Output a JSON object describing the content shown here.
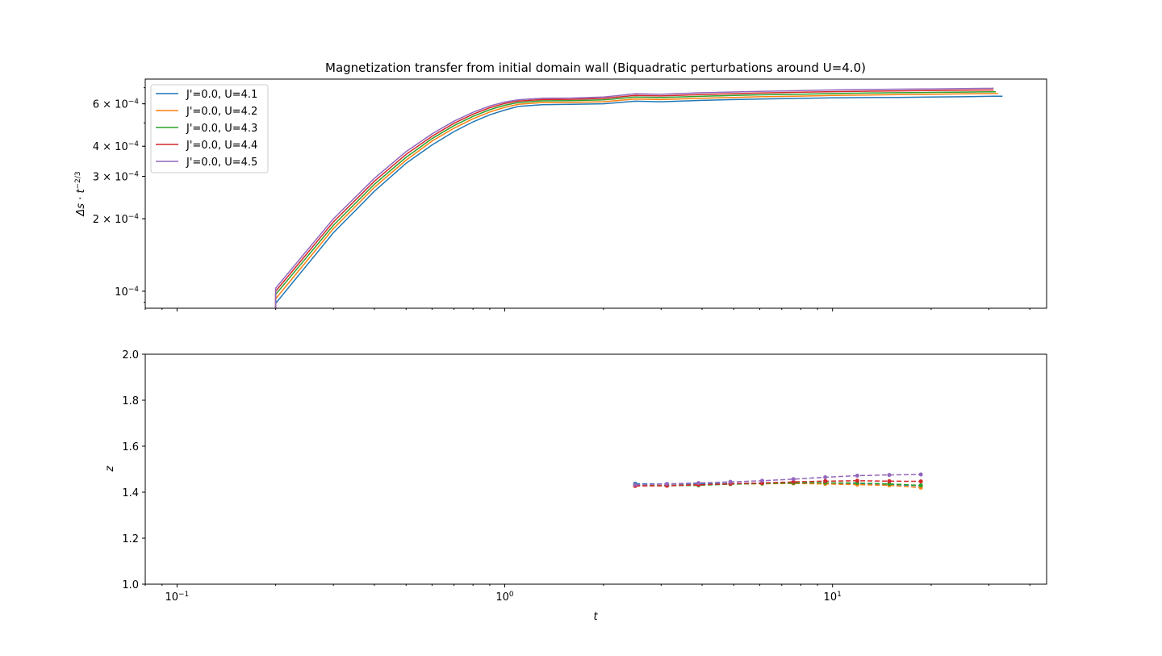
{
  "chart_data": [
    {
      "type": "line",
      "title": "Magnetization transfer from initial domain wall (Biquadratic perturbations around U=4.0)",
      "xlabel": "",
      "ylabel": "Δs · t^{−2/3}",
      "xscale": "log",
      "yscale": "log",
      "xlim": [
        0.08,
        45
      ],
      "ylim": [
        8.5e-05,
        0.00076
      ],
      "ytick_labels": [
        {
          "value": 0.0001,
          "base": "10",
          "exp": "−4",
          "mant": ""
        },
        {
          "value": 0.0002,
          "base": "10",
          "exp": "−4",
          "mant": "2 × "
        },
        {
          "value": 0.0003,
          "base": "10",
          "exp": "−4",
          "mant": "3 × "
        },
        {
          "value": 0.0004,
          "base": "10",
          "exp": "−4",
          "mant": "4 × "
        },
        {
          "value": 0.0006,
          "base": "10",
          "exp": "−4",
          "mant": "6 × "
        }
      ],
      "legend_position": "upper-left",
      "grid": false,
      "x": [
        0.2,
        0.3,
        0.4,
        0.5,
        0.6,
        0.7,
        0.8,
        0.9,
        1.0,
        1.1,
        1.3,
        1.6,
        2.0,
        2.5,
        3.0,
        4.0,
        5.0,
        6.0,
        8.0,
        10.0,
        13.0,
        16.0,
        20.0,
        25.0,
        31.0
      ],
      "series": [
        {
          "name": "J'=0.0, U=4.1",
          "color": "#1f77b4",
          "start_value": 8.5e-05,
          "values": [
            8.9e-05,
            0.000175,
            0.00026,
            0.00034,
            0.000405,
            0.00046,
            0.000505,
            0.00054,
            0.000565,
            0.000585,
            0.000595,
            0.000597,
            0.0006,
            0.000615,
            0.000612,
            0.00062,
            0.000625,
            0.000628,
            0.000632,
            0.000635,
            0.000637,
            0.000638,
            0.00064,
            0.000642,
            0.000645
          ],
          "end_x": 33.0
        },
        {
          "name": "J'=0.0, U=4.2",
          "color": "#ff7f0e",
          "start_value": 8.5e-05,
          "values": [
            9.3e-05,
            0.000182,
            0.00027,
            0.00035,
            0.00042,
            0.000475,
            0.00052,
            0.000555,
            0.00058,
            0.000597,
            0.000607,
            0.000608,
            0.000612,
            0.000628,
            0.000625,
            0.000633,
            0.000638,
            0.000642,
            0.000646,
            0.00065,
            0.000653,
            0.000655,
            0.000657,
            0.00066,
            0.000662
          ],
          "end_x": 32.0
        },
        {
          "name": "J'=0.0, U=4.3",
          "color": "#2ca02c",
          "start_value": 8.5e-05,
          "values": [
            9.7e-05,
            0.000188,
            0.000278,
            0.00036,
            0.00043,
            0.000487,
            0.000532,
            0.000567,
            0.000592,
            0.000607,
            0.000617,
            0.000618,
            0.000623,
            0.00064,
            0.000637,
            0.000645,
            0.00065,
            0.000654,
            0.000658,
            0.000662,
            0.000665,
            0.000667,
            0.000669,
            0.000671,
            0.000673
          ],
          "end_x": 31.5
        },
        {
          "name": "J'=0.0, U=4.4",
          "color": "#d62728",
          "start_value": 8.5e-05,
          "values": [
            0.0001,
            0.000194,
            0.000286,
            0.00037,
            0.00044,
            0.000498,
            0.000543,
            0.000578,
            0.000602,
            0.000616,
            0.000625,
            0.000626,
            0.000632,
            0.00065,
            0.000647,
            0.000656,
            0.000661,
            0.000665,
            0.00067,
            0.000674,
            0.000677,
            0.000679,
            0.000681,
            0.000683,
            0.000685
          ],
          "end_x": 31.0
        },
        {
          "name": "J'=0.0, U=4.5",
          "color": "#9467bd",
          "start_value": 8.5e-05,
          "values": [
            0.000103,
            0.0002,
            0.000294,
            0.00038,
            0.00045,
            0.000508,
            0.000553,
            0.000588,
            0.00061,
            0.000624,
            0.000633,
            0.000634,
            0.00064,
            0.00066,
            0.000657,
            0.000667,
            0.000672,
            0.000676,
            0.000681,
            0.000685,
            0.000688,
            0.00069,
            0.000692,
            0.000694,
            0.000696
          ],
          "end_x": 30.5
        }
      ]
    },
    {
      "type": "line",
      "title": "",
      "xlabel": "t",
      "ylabel": "z",
      "xscale": "log",
      "yscale": "linear",
      "xlim": [
        0.08,
        45
      ],
      "ylim": [
        1.0,
        2.0
      ],
      "yticks": [
        1.0,
        1.2,
        1.4,
        1.6,
        1.8,
        2.0
      ],
      "ytick_labels": [
        "1.0",
        "1.2",
        "1.4",
        "1.6",
        "1.8",
        "2.0"
      ],
      "xtick_labels": [
        {
          "value": 0.1,
          "base": "10",
          "exp": "−1"
        },
        {
          "value": 1,
          "base": "10",
          "exp": "0"
        },
        {
          "value": 10,
          "base": "10",
          "exp": "1"
        }
      ],
      "line_style": "dashed",
      "marker": "circle",
      "grid": false,
      "x": [
        2.5,
        3.125,
        3.9,
        4.88,
        6.1,
        7.6,
        9.5,
        11.9,
        14.9,
        18.6
      ],
      "series": [
        {
          "color": "#1f77b4",
          "values": [
            1.437,
            1.435,
            1.436,
            1.438,
            1.44,
            1.441,
            1.44,
            1.437,
            1.434,
            1.428
          ]
        },
        {
          "color": "#ff7f0e",
          "values": [
            1.43,
            1.429,
            1.432,
            1.435,
            1.437,
            1.438,
            1.436,
            1.433,
            1.43,
            1.42
          ]
        },
        {
          "color": "#2ca02c",
          "values": [
            1.428,
            1.428,
            1.43,
            1.435,
            1.438,
            1.44,
            1.441,
            1.44,
            1.436,
            1.43
          ]
        },
        {
          "color": "#d62728",
          "values": [
            1.427,
            1.428,
            1.432,
            1.437,
            1.44,
            1.445,
            1.448,
            1.45,
            1.448,
            1.447
          ]
        },
        {
          "color": "#9467bd",
          "values": [
            1.432,
            1.436,
            1.44,
            1.445,
            1.45,
            1.457,
            1.465,
            1.472,
            1.475,
            1.477
          ]
        }
      ]
    }
  ]
}
